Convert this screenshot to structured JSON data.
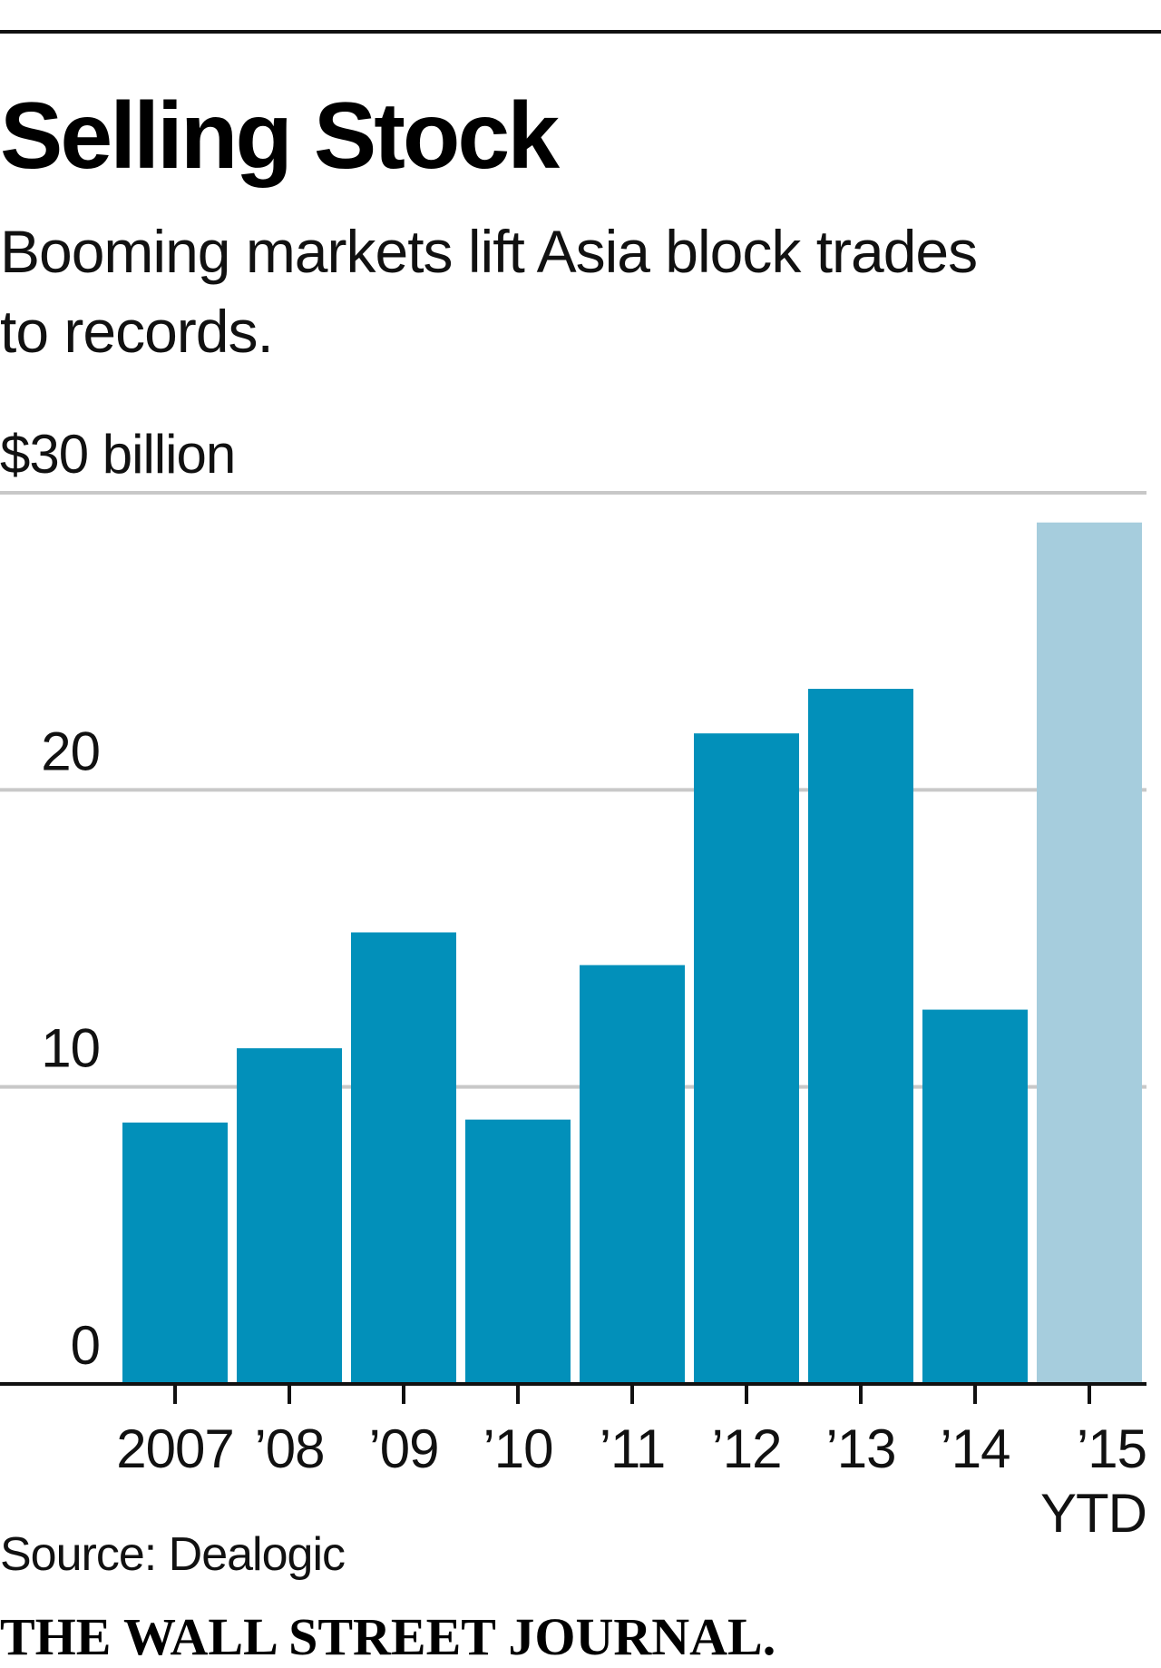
{
  "chart_data": {
    "type": "bar",
    "title": "Selling Stock",
    "subtitle": [
      "Booming markets lift Asia block trades",
      "to records."
    ],
    "ylabel": "$30 billion",
    "ylim": [
      0,
      30
    ],
    "yticks": [
      {
        "value": 0,
        "label": "0"
      },
      {
        "value": 10,
        "label": "10"
      },
      {
        "value": 20,
        "label": "20"
      },
      {
        "value": 30,
        "label": "$30 billion"
      }
    ],
    "grid": true,
    "categories": [
      "2007",
      "'08",
      "'09",
      "'10",
      "'11",
      "'12",
      "'13",
      "'14",
      "'15 YTD"
    ],
    "category_labels": [
      [
        "2007"
      ],
      [
        "’08"
      ],
      [
        "’09"
      ],
      [
        "’10"
      ],
      [
        "’11"
      ],
      [
        "’12"
      ],
      [
        "’13"
      ],
      [
        "’14"
      ],
      [
        "’15",
        "YTD"
      ]
    ],
    "values": [
      8.8,
      11.3,
      15.2,
      8.9,
      14.1,
      21.9,
      23.4,
      12.6,
      29.0
    ],
    "colors": {
      "bar": "#0290ba",
      "highlight": "#a6cddd",
      "grid": "#c8c8c8",
      "axis": "#111111"
    },
    "highlight_index": 8,
    "source": "Source: Dealogic",
    "credit": "THE WALL STREET JOURNAL."
  }
}
